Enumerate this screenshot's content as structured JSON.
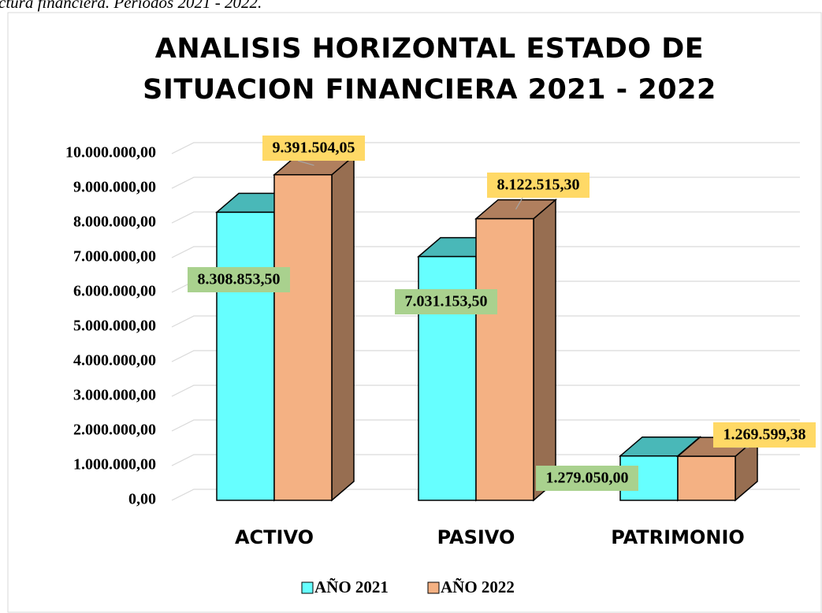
{
  "caption": "ctura financiera. Periodos 2021 - 2022.",
  "chart_data": {
    "type": "bar3d",
    "title": "ANALISIS HORIZONTAL ESTADO DE SITUACION FINANCIERA 2021 - 2022",
    "categories": [
      "ACTIVO",
      "PASIVO",
      "PATRIMONIO"
    ],
    "series": [
      {
        "name": "AÑO 2021",
        "color": "#66ffff",
        "values": [
          8308853.5,
          7031153.5,
          1279050
        ],
        "value_labels": [
          "8.308.853,50",
          "7.031.153,50",
          "1.279.050,00"
        ],
        "label_color": "#a9d18e"
      },
      {
        "name": "AÑO 2022",
        "color": "#f4b183",
        "values": [
          9391504.05,
          8122515.3,
          1269599.38
        ],
        "value_labels": [
          "9.391.504,05",
          "8.122.515,30",
          "1.269.599,38"
        ],
        "label_color": "#ffd966"
      }
    ],
    "ylim": [
      0,
      10000000
    ],
    "yticks": [
      {
        "value": 0,
        "label": "0,00"
      },
      {
        "value": 1000000,
        "label": "1.000.000,00"
      },
      {
        "value": 2000000,
        "label": "2.000.000,00"
      },
      {
        "value": 3000000,
        "label": "3.000.000,00"
      },
      {
        "value": 4000000,
        "label": "4.000.000,00"
      },
      {
        "value": 5000000,
        "label": "5.000.000,00"
      },
      {
        "value": 6000000,
        "label": "6.000.000,00"
      },
      {
        "value": 7000000,
        "label": "7.000.000,00"
      },
      {
        "value": 8000000,
        "label": "8.000.000,00"
      },
      {
        "value": 9000000,
        "label": "9.000.000,00"
      },
      {
        "value": 10000000,
        "label": "10.000.000,00"
      }
    ],
    "grid": true,
    "legend": "bottom"
  }
}
